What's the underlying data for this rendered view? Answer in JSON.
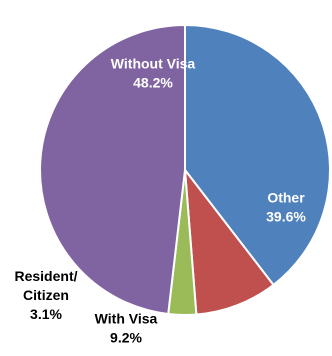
{
  "chart_data": {
    "type": "pie",
    "title": "",
    "slices": [
      {
        "label": "Other",
        "value": 39.6,
        "display": "39.6%",
        "color": "#4f81bd",
        "label_position": "inside"
      },
      {
        "label": "With Visa",
        "value": 9.2,
        "display": "9.2%",
        "color": "#c0504d",
        "label_position": "outside"
      },
      {
        "label": "Resident/ Citizen",
        "label_lines": [
          "Resident/",
          "Citizen"
        ],
        "value": 3.1,
        "display": "3.1%",
        "color": "#9bbb59",
        "label_position": "outside"
      },
      {
        "label": "Without Visa",
        "value": 48.2,
        "display": "48.2%",
        "color": "#8064a2",
        "label_position": "inside"
      }
    ],
    "start": "12 o'clock, clockwise",
    "legend": "none"
  }
}
